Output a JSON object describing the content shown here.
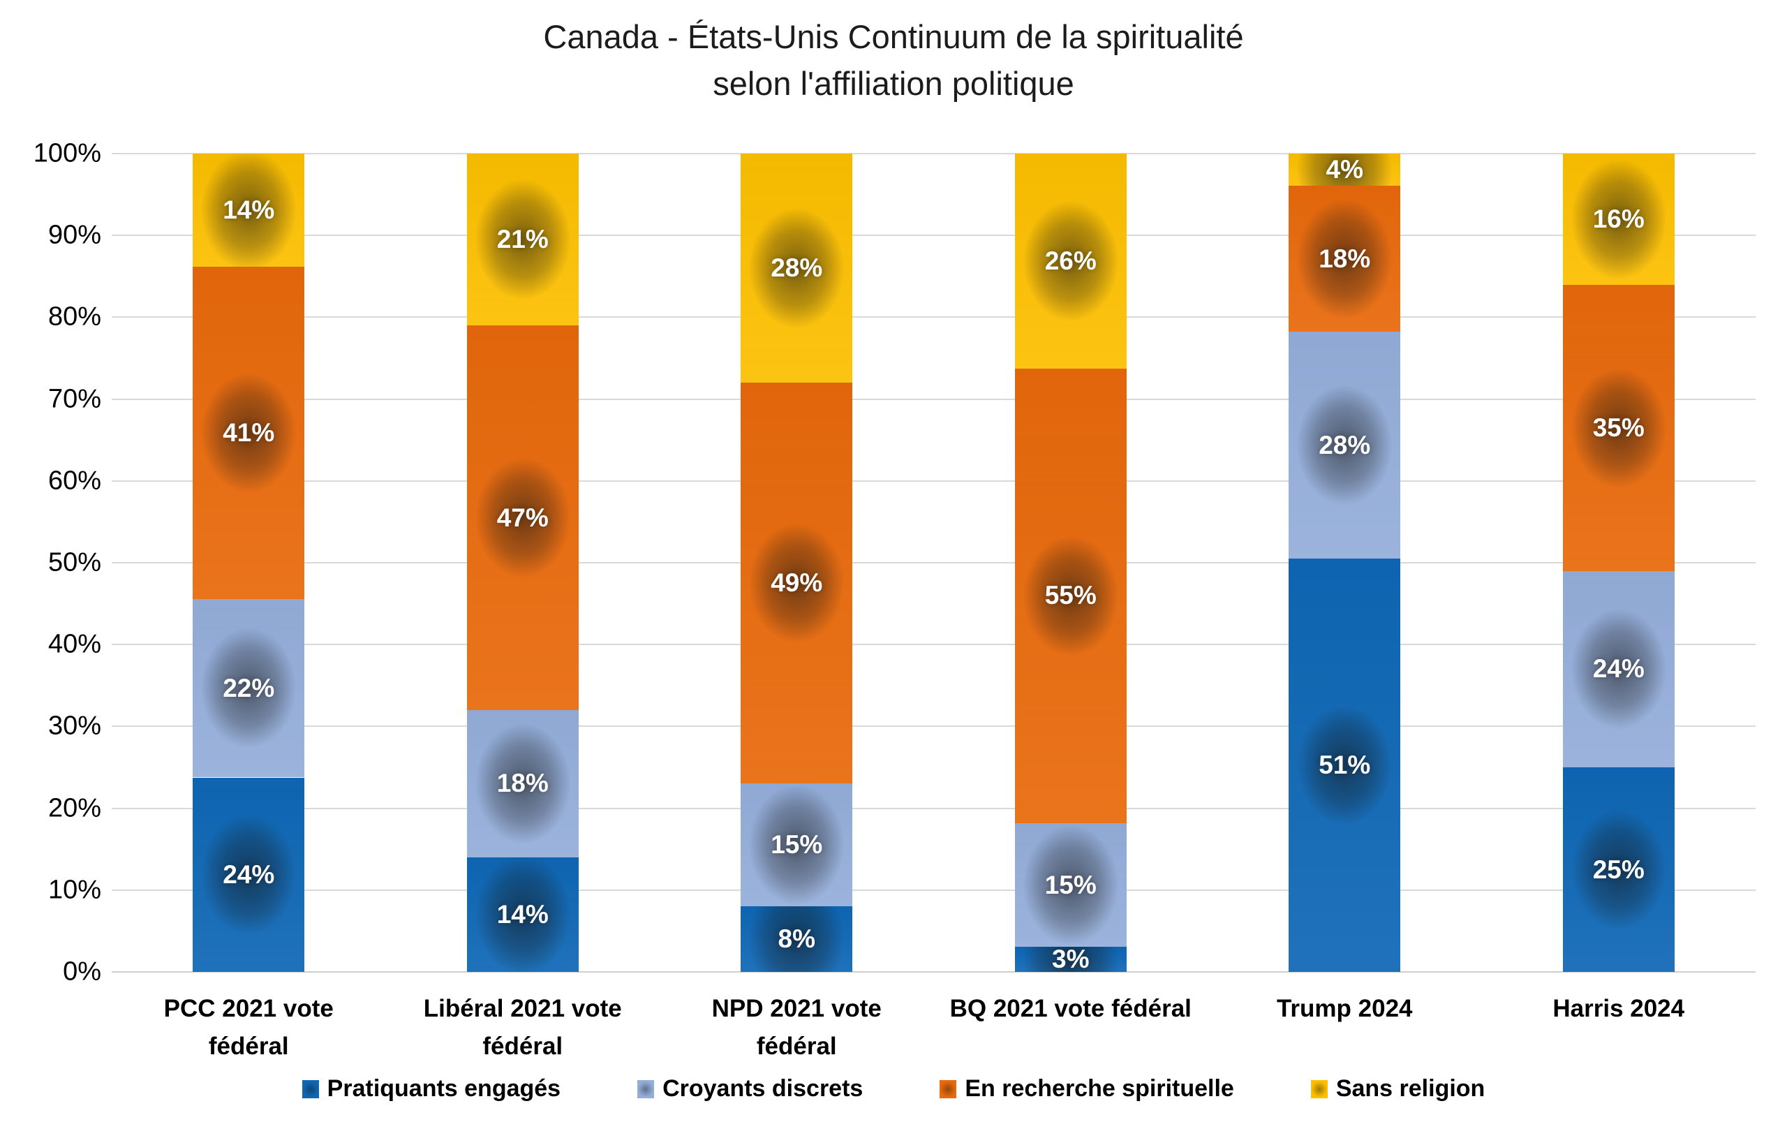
{
  "title": "Canada - États-Unis Continuum de la spiritualité\nselon l'affiliation politique",
  "chart_data": {
    "type": "bar",
    "subtype": "stacked-100-percent-column",
    "title": "Canada - États-Unis Continuum de la spiritualité selon l'affiliation politique",
    "categories": [
      "PCC 2021 vote\nfédéral",
      "Libéral 2021 vote\nfédéral",
      "NPD 2021 vote\nfédéral",
      "BQ 2021 vote fédéral",
      "Trump 2024",
      "Harris 2024"
    ],
    "series": [
      {
        "name": "Pratiquants engagés",
        "color": "#0E67B5",
        "values": [
          24,
          14,
          8,
          3,
          51,
          25
        ]
      },
      {
        "name": "Croyants discrets",
        "color": "#94AEDA",
        "values": [
          22,
          18,
          15,
          15,
          28,
          24
        ]
      },
      {
        "name": "En recherche spirituelle",
        "color": "#E8690B",
        "values": [
          41,
          47,
          49,
          55,
          18,
          35
        ]
      },
      {
        "name": "Sans religion",
        "color": "#FCBF00",
        "values": [
          14,
          21,
          28,
          26,
          4,
          16
        ]
      }
    ],
    "data_label_suffix": "%",
    "xlabel": "",
    "ylabel": "",
    "ylim": [
      0,
      100
    ],
    "yticks": [
      "0%",
      "10%",
      "20%",
      "30%",
      "40%",
      "50%",
      "60%",
      "70%",
      "80%",
      "90%",
      "100%"
    ],
    "grid": "horizontal",
    "legend_position": "bottom",
    "label_color": "#FFFFFF",
    "gridline_color": "#D9D9D9"
  }
}
